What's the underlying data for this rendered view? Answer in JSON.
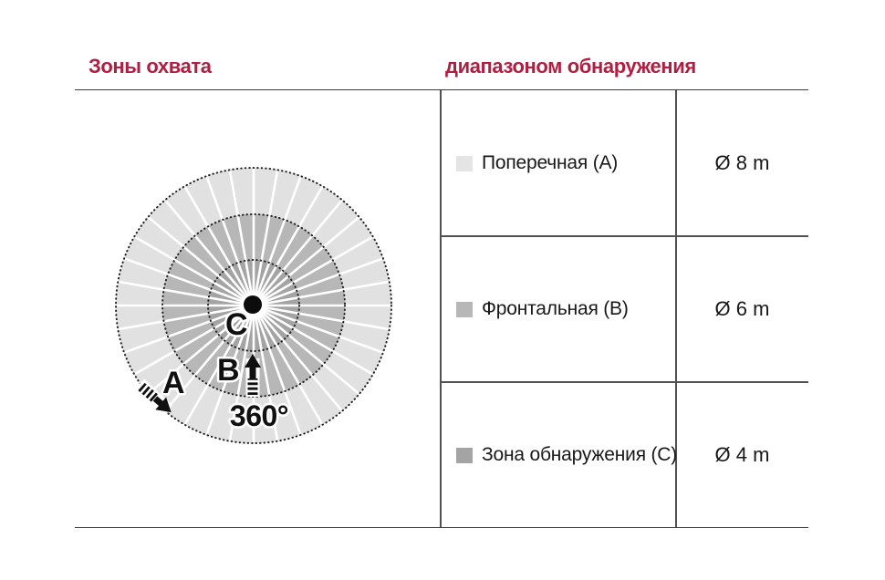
{
  "meta": {
    "accent_red": "#b01f42",
    "line_color": "#515151",
    "text_color": "#181818"
  },
  "headers": {
    "left": "Зоны охвата",
    "right": "диапазоном обнаружения"
  },
  "diagram": {
    "rotation_label": "360°",
    "labels": {
      "a": "A",
      "b": "B",
      "c": "C"
    },
    "zone_colors": {
      "a_outer": "#e1e1e1",
      "b_middle": "#b7b7b7",
      "c_inner": "#a4a4a4"
    },
    "spokes": 36
  },
  "table": {
    "rows": [
      {
        "swatch_color": "#e4e4e4",
        "label": "Поперечная (A)",
        "value": "Ø 8 m"
      },
      {
        "swatch_color": "#b7b7b7",
        "label": "Фронтальная (B)",
        "value": "Ø 6 m"
      },
      {
        "swatch_color": "#a4a4a4",
        "label": "Зона обнаружения (C)",
        "value": "Ø 4 m"
      }
    ]
  }
}
